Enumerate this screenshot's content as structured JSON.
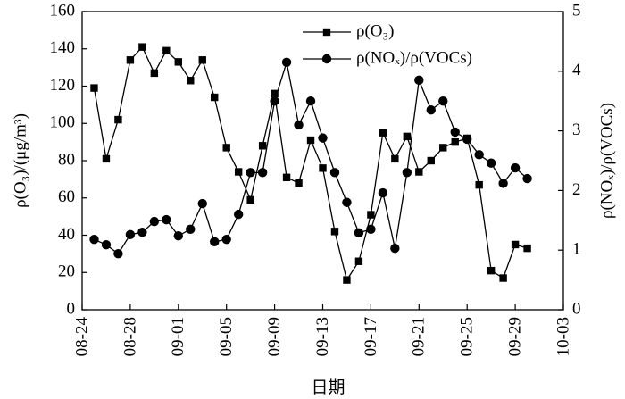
{
  "chart_data": {
    "type": "line",
    "xlabel": "日期",
    "ylabel": "ρ(O₃)/(μg/m³)",
    "y2label": "ρ(NOₓ)/ρ(VOCs)",
    "x_ticks": [
      "08-24",
      "08-28",
      "09-01",
      "09-05",
      "09-09",
      "09-13",
      "09-17",
      "09-21",
      "09-25",
      "09-29",
      "10-03"
    ],
    "y_ticks": [
      0,
      20,
      40,
      60,
      80,
      100,
      120,
      140,
      160
    ],
    "y2_ticks": [
      0,
      1,
      2,
      3,
      4,
      5
    ],
    "ylim": [
      0,
      160
    ],
    "y2lim": [
      0,
      5
    ],
    "grid": false,
    "legend_position": "top-right",
    "x_start_label": "08-24",
    "x_end_label": "10-03",
    "series": [
      {
        "name": "ρ(O₃)",
        "axis": "left",
        "marker": "square",
        "points": [
          [
            "08-25",
            119
          ],
          [
            "08-26",
            81
          ],
          [
            "08-27",
            102
          ],
          [
            "08-28",
            134
          ],
          [
            "08-29",
            141
          ],
          [
            "08-30",
            127
          ],
          [
            "08-31",
            139
          ],
          [
            "09-01",
            133
          ],
          [
            "09-02",
            123
          ],
          [
            "09-03",
            134
          ],
          [
            "09-04",
            114
          ],
          [
            "09-05",
            87
          ],
          [
            "09-06",
            74
          ],
          [
            "09-07",
            59
          ],
          [
            "09-08",
            88
          ],
          [
            "09-09",
            116
          ],
          [
            "09-10",
            71
          ],
          [
            "09-11",
            68
          ],
          [
            "09-12",
            91
          ],
          [
            "09-13",
            76
          ],
          [
            "09-14",
            42
          ],
          [
            "09-15",
            16
          ],
          [
            "09-16",
            26
          ],
          [
            "09-17",
            51
          ],
          [
            "09-18",
            95
          ],
          [
            "09-19",
            81
          ],
          [
            "09-20",
            93
          ],
          [
            "09-21",
            74
          ],
          [
            "09-22",
            80
          ],
          [
            "09-23",
            87
          ],
          [
            "09-24",
            90
          ],
          [
            "09-25",
            92
          ],
          [
            "09-26",
            67
          ],
          [
            "09-27",
            21
          ],
          [
            "09-28",
            17
          ],
          [
            "09-29",
            35
          ],
          [
            "09-30",
            33
          ]
        ]
      },
      {
        "name": "ρ(NOₓ)/ρ(VOCs)",
        "axis": "right",
        "marker": "circle",
        "points": [
          [
            "08-25",
            1.18
          ],
          [
            "08-26",
            1.09
          ],
          [
            "08-27",
            0.94
          ],
          [
            "08-28",
            1.26
          ],
          [
            "08-29",
            1.3
          ],
          [
            "08-30",
            1.48
          ],
          [
            "08-31",
            1.51
          ],
          [
            "09-01",
            1.24
          ],
          [
            "09-02",
            1.35
          ],
          [
            "09-03",
            1.78
          ],
          [
            "09-04",
            1.14
          ],
          [
            "09-05",
            1.18
          ],
          [
            "09-06",
            1.6
          ],
          [
            "09-07",
            2.3
          ],
          [
            "09-08",
            2.3
          ],
          [
            "09-09",
            3.5
          ],
          [
            "09-10",
            4.15
          ],
          [
            "09-11",
            3.1
          ],
          [
            "09-12",
            3.5
          ],
          [
            "09-13",
            2.88
          ],
          [
            "09-14",
            2.3
          ],
          [
            "09-15",
            1.8
          ],
          [
            "09-16",
            1.29
          ],
          [
            "09-17",
            1.35
          ],
          [
            "09-18",
            1.96
          ],
          [
            "09-19",
            1.03
          ],
          [
            "09-20",
            2.3
          ],
          [
            "09-21",
            3.85
          ],
          [
            "09-22",
            3.35
          ],
          [
            "09-23",
            3.5
          ],
          [
            "09-24",
            2.98
          ],
          [
            "09-25",
            2.86
          ],
          [
            "09-26",
            2.6
          ],
          [
            "09-27",
            2.46
          ],
          [
            "09-28",
            2.12
          ],
          [
            "09-29",
            2.38
          ],
          [
            "09-30",
            2.2
          ]
        ]
      }
    ]
  }
}
